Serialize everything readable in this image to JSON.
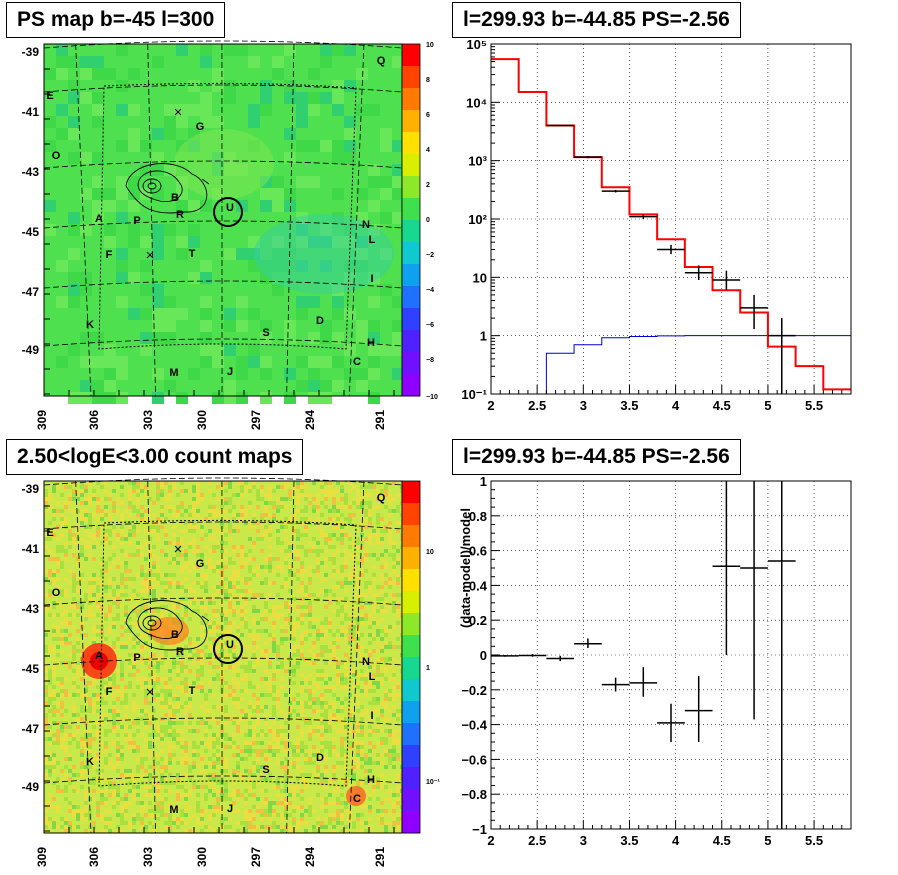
{
  "titles": {
    "map_top": "PS map b=-45 l=300",
    "spec_top": "l=299.93 b=-44.85 PS=-2.56",
    "map_bottom": "2.50<logE<3.00 count maps",
    "res_bottom": "l=299.93 b=-44.85 PS=-2.56"
  },
  "colors": {
    "map_top_bg": "#4ee04e",
    "map_bottom_bg": "#c9e84a",
    "model_line": "#ff0000",
    "background_line": "#0000cc"
  },
  "map_axes": {
    "y_labels": [
      "-39",
      "-41",
      "-43",
      "-45",
      "-47",
      "-49"
    ],
    "x_labels": [
      "309",
      "306",
      "303",
      "300",
      "297",
      "294",
      "291"
    ],
    "sources": [
      "Q",
      "E",
      "G",
      "O",
      "B",
      "R",
      "U",
      "A",
      "P",
      "N",
      "L",
      "F",
      "T",
      "I",
      "K",
      "S",
      "D",
      "H",
      "C",
      "M",
      "J"
    ]
  },
  "colorbar_top": {
    "labels": [
      "10",
      "8",
      "6",
      "4",
      "2",
      "0",
      "−2",
      "−4",
      "−6",
      "−8",
      "−10"
    ],
    "colors": [
      "#ff0000",
      "#ff4400",
      "#ff7a00",
      "#ffb000",
      "#ffe000",
      "#d8f000",
      "#8ee82a",
      "#3fe04e",
      "#18d890",
      "#10c8d0",
      "#10a0f0",
      "#2070ff",
      "#3040ff",
      "#5020ff",
      "#7010ff",
      "#9000ff"
    ]
  },
  "colorbar_bottom": {
    "labels": [
      "10",
      "1",
      "10⁻¹"
    ],
    "colors": [
      "#ff0000",
      "#ff4400",
      "#ff7a00",
      "#ffb000",
      "#ffe000",
      "#d8f000",
      "#8ee82a",
      "#3fe04e",
      "#18d890",
      "#10c8d0",
      "#10a0f0",
      "#2070ff",
      "#3040ff",
      "#5020ff",
      "#7010ff",
      "#9000ff"
    ]
  },
  "chart_data": [
    {
      "type": "line",
      "title": "l=299.93 b=-44.85 PS=-2.56",
      "xlim": [
        2,
        5.9
      ],
      "ylim": [
        0.1,
        100000
      ],
      "log_y": true,
      "x_ticks": [
        "2",
        "2.5",
        "3",
        "3.5",
        "4",
        "4.5",
        "5",
        "5.5"
      ],
      "y_ticks": [
        "10⁻¹",
        "1",
        "10",
        "10²",
        "10³",
        "10⁴",
        "10⁵"
      ],
      "model_step": {
        "edges": [
          2.0,
          2.3,
          2.6,
          2.9,
          3.2,
          3.5,
          3.8,
          4.1,
          4.4,
          4.7,
          5.0,
          5.3,
          5.6,
          5.9
        ],
        "values": [
          55000,
          15000,
          4000,
          1150,
          350,
          120,
          45,
          15,
          6,
          2.5,
          0.65,
          0.3,
          0.12
        ]
      },
      "background_step": {
        "edges": [
          2.0,
          2.3,
          2.6,
          2.9,
          3.2,
          3.5,
          3.8,
          4.1,
          4.4,
          4.7,
          5.0,
          5.3,
          5.6,
          5.9
        ],
        "values": [
          0.04,
          0.1,
          0.5,
          0.7,
          0.92,
          0.97,
          0.99,
          1.0,
          1.0,
          1.0,
          1.0,
          1.0,
          1.0
        ]
      },
      "data_points": [
        {
          "x": 2.75,
          "y": 4000,
          "xerr": 0.15,
          "ylo": 3900,
          "yhi": 4100
        },
        {
          "x": 3.05,
          "y": 1150,
          "xerr": 0.15,
          "ylo": 1100,
          "yhi": 1200
        },
        {
          "x": 3.35,
          "y": 300,
          "xerr": 0.15,
          "ylo": 285,
          "yhi": 315
        },
        {
          "x": 3.65,
          "y": 110,
          "xerr": 0.15,
          "ylo": 100,
          "yhi": 120
        },
        {
          "x": 3.95,
          "y": 30,
          "xerr": 0.15,
          "ylo": 25,
          "yhi": 36
        },
        {
          "x": 4.25,
          "y": 12,
          "xerr": 0.15,
          "ylo": 9,
          "yhi": 16
        },
        {
          "x": 4.55,
          "y": 9,
          "xerr": 0.15,
          "ylo": 6,
          "yhi": 13
        },
        {
          "x": 4.85,
          "y": 3,
          "xerr": 0.15,
          "ylo": 1.3,
          "yhi": 5
        },
        {
          "x": 5.15,
          "y": 1,
          "xerr": 0.15,
          "ylo": 0.1,
          "yhi": 2
        }
      ]
    },
    {
      "type": "scatter",
      "title": "l=299.93 b=-44.85 PS=-2.56",
      "ylabel": "(data-model)/model",
      "xlim": [
        2,
        5.9
      ],
      "ylim": [
        -1,
        1
      ],
      "x_ticks": [
        "2",
        "2.5",
        "3",
        "3.5",
        "4",
        "4.5",
        "5",
        "5.5"
      ],
      "y_ticks": [
        "−1",
        "−0.8",
        "−0.6",
        "−0.4",
        "−0.2",
        "0",
        "0.2",
        "0.4",
        "0.6",
        "0.8",
        "1"
      ],
      "points": [
        {
          "x": 2.15,
          "y": -0.005,
          "xerr": 0.15,
          "ylo": -0.01,
          "yhi": 0.0
        },
        {
          "x": 2.45,
          "y": -0.003,
          "xerr": 0.15,
          "ylo": -0.01,
          "yhi": 0.005
        },
        {
          "x": 2.75,
          "y": -0.02,
          "xerr": 0.15,
          "ylo": -0.035,
          "yhi": -0.005
        },
        {
          "x": 3.05,
          "y": 0.065,
          "xerr": 0.15,
          "ylo": 0.04,
          "yhi": 0.095
        },
        {
          "x": 3.35,
          "y": -0.17,
          "xerr": 0.15,
          "ylo": -0.21,
          "yhi": -0.13
        },
        {
          "x": 3.65,
          "y": -0.16,
          "xerr": 0.15,
          "ylo": -0.24,
          "yhi": -0.07
        },
        {
          "x": 3.95,
          "y": -0.39,
          "xerr": 0.15,
          "ylo": -0.5,
          "yhi": -0.28
        },
        {
          "x": 4.25,
          "y": -0.32,
          "xerr": 0.15,
          "ylo": -0.5,
          "yhi": -0.12
        },
        {
          "x": 4.55,
          "y": 0.51,
          "xerr": 0.15,
          "ylo": 0.0,
          "yhi": 1.0
        },
        {
          "x": 4.85,
          "y": 0.5,
          "xerr": 0.15,
          "ylo": -0.37,
          "yhi": 1.0
        },
        {
          "x": 5.15,
          "y": 0.54,
          "xerr": 0.15,
          "ylo": -1.0,
          "yhi": 1.0
        }
      ]
    }
  ]
}
